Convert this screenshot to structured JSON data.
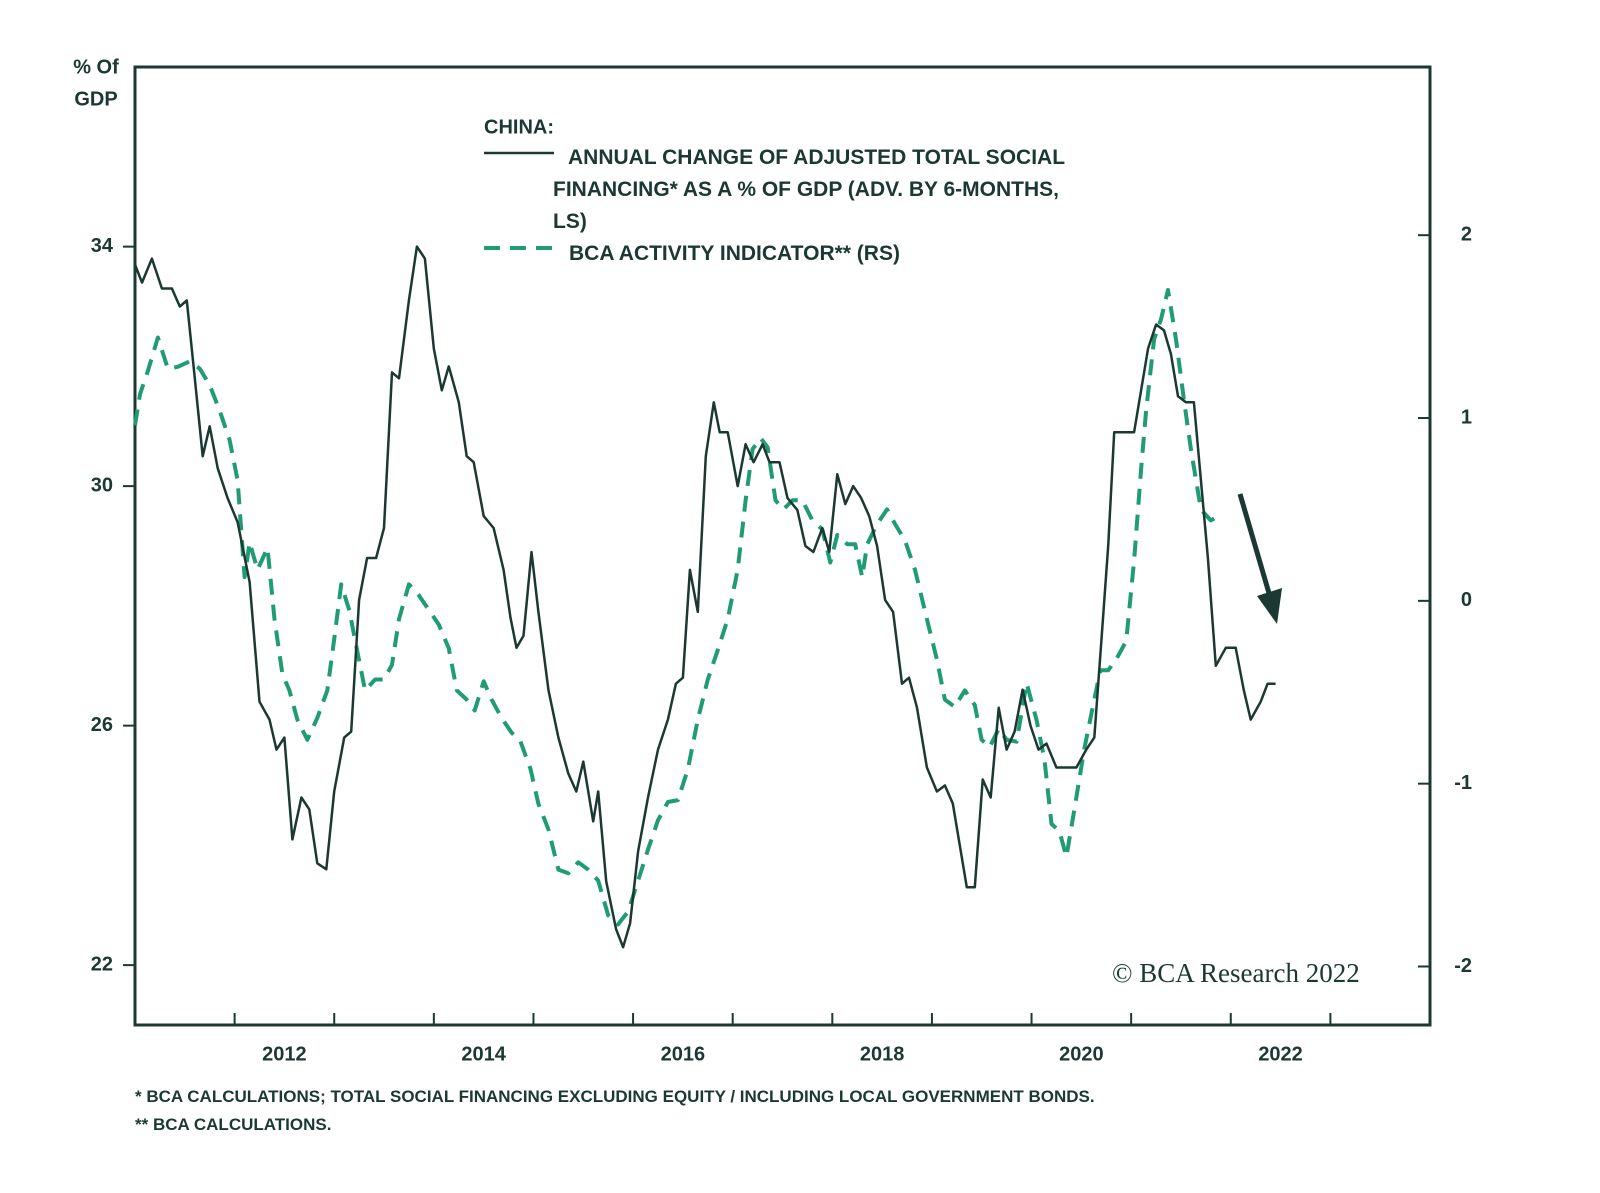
{
  "chart_data": {
    "type": "line",
    "ylabel": [
      "% Of",
      "GDP"
    ],
    "legend_title": "CHINA:",
    "xlim": [
      2011,
      2024
    ],
    "xticks": [
      2012,
      2014,
      2016,
      2018,
      2020,
      2022
    ],
    "xminorticks": [
      2013,
      2015,
      2017,
      2019,
      2021,
      2023
    ],
    "ylim": [
      21,
      37
    ],
    "yticks": [
      22,
      26,
      30,
      34
    ],
    "y2lim": [
      -2.32,
      2.92
    ],
    "y2ticks": [
      -2,
      -1,
      0,
      1,
      2
    ],
    "grid": false,
    "series": [
      {
        "name": "ANNUAL CHANGE OF ADJUSTED TOTAL SOCIAL FINANCING* AS A % OF GDP (ADV. BY 6-MONTHS, LS)",
        "color": "#1b3833",
        "linestyle": "solid",
        "axis": "y",
        "x": [
          2011.0,
          2011.07,
          2011.17,
          2011.27,
          2011.37,
          2011.45,
          2011.52,
          2011.6,
          2011.68,
          2011.75,
          2011.83,
          2011.93,
          2012.03,
          2012.15,
          2012.25,
          2012.35,
          2012.42,
          2012.5,
          2012.58,
          2012.67,
          2012.75,
          2012.83,
          2012.92,
          2013.0,
          2013.1,
          2013.17,
          2013.25,
          2013.33,
          2013.42,
          2013.5,
          2013.58,
          2013.65,
          2013.75,
          2013.83,
          2013.91,
          2014.0,
          2014.08,
          2014.15,
          2014.25,
          2014.33,
          2014.4,
          2014.5,
          2014.6,
          2014.7,
          2014.77,
          2014.83,
          2014.9,
          2014.98,
          2015.05,
          2015.15,
          2015.25,
          2015.35,
          2015.43,
          2015.5,
          2015.6,
          2015.65,
          2015.73,
          2015.83,
          2015.9,
          2015.97,
          2016.05,
          2016.15,
          2016.25,
          2016.35,
          2016.43,
          2016.5,
          2016.57,
          2016.65,
          2016.73,
          2016.81,
          2016.87,
          2016.95,
          2017.05,
          2017.13,
          2017.21,
          2017.3,
          2017.37,
          2017.47,
          2017.55,
          2017.65,
          2017.73,
          2017.81,
          2017.9,
          2017.97,
          2018.05,
          2018.13,
          2018.21,
          2018.29,
          2018.37,
          2018.45,
          2018.53,
          2018.61,
          2018.7,
          2018.77,
          2018.85,
          2018.95,
          2019.05,
          2019.13,
          2019.21,
          2019.28,
          2019.35,
          2019.43,
          2019.51,
          2019.59,
          2019.67,
          2019.75,
          2019.83,
          2019.91,
          2019.99,
          2020.07,
          2020.15,
          2020.25,
          2020.35,
          2020.45,
          2020.55,
          2020.63,
          2020.7,
          2020.77,
          2020.83,
          2020.93,
          2021.03,
          2021.1,
          2021.17,
          2021.25,
          2021.33,
          2021.4,
          2021.47,
          2021.55,
          2021.63,
          2021.7,
          2021.77,
          2021.85,
          2021.95,
          2022.05,
          2022.13,
          2022.2,
          2022.3,
          2022.37,
          2022.45
        ],
        "values": [
          33.7,
          33.4,
          33.8,
          33.3,
          33.3,
          33.0,
          33.1,
          31.8,
          30.5,
          31.0,
          30.3,
          29.8,
          29.4,
          28.4,
          26.4,
          26.1,
          25.6,
          25.8,
          24.1,
          24.8,
          24.6,
          23.7,
          23.6,
          24.9,
          25.8,
          25.9,
          28.1,
          28.8,
          28.8,
          29.3,
          31.9,
          31.8,
          33.1,
          34.0,
          33.8,
          32.3,
          31.6,
          32.0,
          31.4,
          30.5,
          30.4,
          29.5,
          29.3,
          28.6,
          27.8,
          27.3,
          27.5,
          28.9,
          27.9,
          26.6,
          25.8,
          25.2,
          24.9,
          25.4,
          24.4,
          24.9,
          23.4,
          22.6,
          22.3,
          22.7,
          23.9,
          24.8,
          25.6,
          26.1,
          26.7,
          26.8,
          28.6,
          27.9,
          30.5,
          31.4,
          30.9,
          30.9,
          30.0,
          30.7,
          30.4,
          30.7,
          30.4,
          30.4,
          29.8,
          29.6,
          29.0,
          28.9,
          29.3,
          28.9,
          30.2,
          29.7,
          30.0,
          29.8,
          29.5,
          29.0,
          28.1,
          27.9,
          26.7,
          26.8,
          26.3,
          25.3,
          24.9,
          25.0,
          24.7,
          24.0,
          23.3,
          23.3,
          25.1,
          24.8,
          26.3,
          25.6,
          25.9,
          26.6,
          26.0,
          25.6,
          25.7,
          25.3,
          25.3,
          25.3,
          25.6,
          25.8,
          27.4,
          29.0,
          30.9,
          30.9,
          30.9,
          31.6,
          32.3,
          32.7,
          32.6,
          32.2,
          31.5,
          31.4,
          31.4,
          30.1,
          28.8,
          27.0,
          27.3,
          27.3,
          26.6,
          26.1,
          26.4,
          26.7,
          26.7
        ]
      },
      {
        "name": "BCA ACTIVITY INDICATOR** (RS)",
        "color": "#1f9c74",
        "linestyle": "dashed",
        "axis": "y2",
        "x": [
          2011.0,
          2011.05,
          2011.13,
          2011.23,
          2011.33,
          2011.43,
          2011.55,
          2011.65,
          2011.75,
          2011.85,
          2011.95,
          2012.03,
          2012.1,
          2012.15,
          2012.23,
          2012.33,
          2012.4,
          2012.48,
          2012.55,
          2012.63,
          2012.73,
          2012.83,
          2012.93,
          2013.0,
          2013.07,
          2013.15,
          2013.23,
          2013.31,
          2013.41,
          2013.5,
          2013.58,
          2013.65,
          2013.75,
          2013.85,
          2013.95,
          2014.05,
          2014.15,
          2014.23,
          2014.33,
          2014.41,
          2014.5,
          2014.58,
          2014.68,
          2014.78,
          2014.87,
          2014.97,
          2015.05,
          2015.15,
          2015.25,
          2015.35,
          2015.45,
          2015.55,
          2015.65,
          2015.75,
          2015.85,
          2015.95,
          2016.05,
          2016.15,
          2016.25,
          2016.35,
          2016.45,
          2016.55,
          2016.65,
          2016.75,
          2016.85,
          2016.95,
          2017.05,
          2017.13,
          2017.2,
          2017.28,
          2017.35,
          2017.43,
          2017.51,
          2017.6,
          2017.7,
          2017.8,
          2017.9,
          2017.98,
          2018.05,
          2018.15,
          2018.23,
          2018.3,
          2018.35,
          2018.45,
          2018.55,
          2018.63,
          2018.73,
          2018.83,
          2018.95,
          2019.05,
          2019.13,
          2019.23,
          2019.33,
          2019.43,
          2019.5,
          2019.58,
          2019.67,
          2019.75,
          2019.85,
          2019.95,
          2020.05,
          2020.13,
          2020.2,
          2020.28,
          2020.35,
          2020.43,
          2020.53,
          2020.6,
          2020.69,
          2020.77,
          2020.85,
          2020.95,
          2021.03,
          2021.1,
          2021.15,
          2021.23,
          2021.3,
          2021.37,
          2021.45,
          2021.53,
          2021.6,
          2021.7,
          2021.8,
          2021.9
        ],
        "values": [
          0.96,
          1.13,
          1.26,
          1.44,
          1.27,
          1.28,
          1.31,
          1.27,
          1.18,
          1.04,
          0.88,
          0.66,
          0.13,
          0.32,
          0.17,
          0.29,
          -0.1,
          -0.4,
          -0.49,
          -0.65,
          -0.76,
          -0.64,
          -0.49,
          -0.21,
          0.09,
          -0.05,
          -0.27,
          -0.49,
          -0.43,
          -0.43,
          -0.35,
          -0.1,
          0.09,
          0.03,
          -0.05,
          -0.13,
          -0.26,
          -0.49,
          -0.54,
          -0.6,
          -0.44,
          -0.54,
          -0.64,
          -0.72,
          -0.77,
          -0.92,
          -1.11,
          -1.25,
          -1.47,
          -1.49,
          -1.43,
          -1.47,
          -1.53,
          -1.72,
          -1.77,
          -1.7,
          -1.53,
          -1.36,
          -1.2,
          -1.1,
          -1.09,
          -0.92,
          -0.65,
          -0.43,
          -0.27,
          -0.1,
          0.17,
          0.55,
          0.83,
          0.89,
          0.84,
          0.55,
          0.5,
          0.55,
          0.55,
          0.44,
          0.39,
          0.21,
          0.36,
          0.31,
          0.31,
          0.13,
          0.31,
          0.42,
          0.5,
          0.42,
          0.33,
          0.17,
          -0.1,
          -0.32,
          -0.54,
          -0.58,
          -0.49,
          -0.57,
          -0.76,
          -0.8,
          -0.7,
          -0.76,
          -0.77,
          -0.45,
          -0.65,
          -0.87,
          -1.22,
          -1.26,
          -1.4,
          -1.14,
          -0.81,
          -0.62,
          -0.38,
          -0.38,
          -0.32,
          -0.22,
          0.22,
          0.72,
          1.04,
          1.43,
          1.54,
          1.7,
          1.43,
          1.1,
          0.83,
          0.5,
          0.44,
          0.47
        ]
      }
    ],
    "footnotes": [
      "*  BCA CALCULATIONS; TOTAL SOCIAL FINANCING EXCLUDING EQUITY / INCLUDING LOCAL GOVERNMENT BONDS.",
      "** BCA CALCULATIONS."
    ],
    "source": "© BCA Research 2022"
  }
}
